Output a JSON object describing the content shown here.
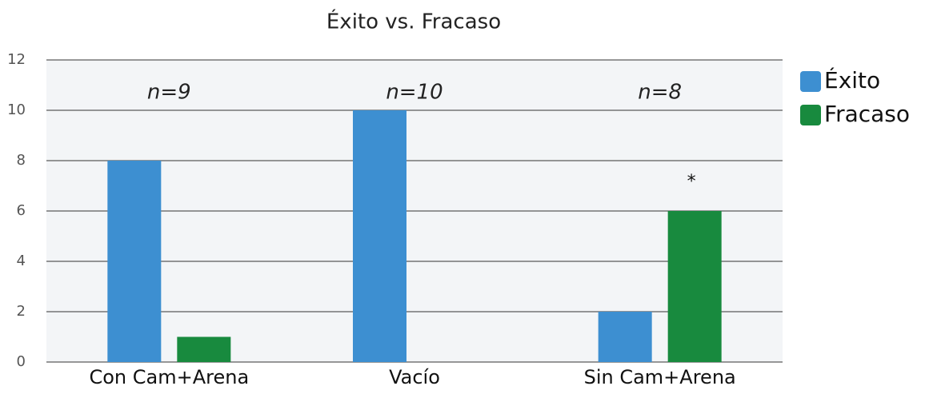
{
  "chart_data": {
    "type": "bar",
    "title": "Éxito vs. Fracaso",
    "categories": [
      "Con Cam+Arena",
      "Vacío",
      "Sin Cam+Arena"
    ],
    "series": [
      {
        "name": "Éxito",
        "color": "#3d8fd1",
        "values": [
          8,
          10,
          2
        ]
      },
      {
        "name": "Fracaso",
        "color": "#188a3e",
        "values": [
          1,
          0,
          6
        ]
      }
    ],
    "group_labels": [
      "n=9",
      "n=10",
      "n=8"
    ],
    "annotations": [
      {
        "text": "*",
        "category": "Sin Cam+Arena",
        "series": "Fracaso"
      }
    ],
    "ylim": [
      0,
      12
    ],
    "yticks": [
      0,
      2,
      4,
      6,
      8,
      10,
      12
    ],
    "grid": true,
    "legend": "right"
  }
}
